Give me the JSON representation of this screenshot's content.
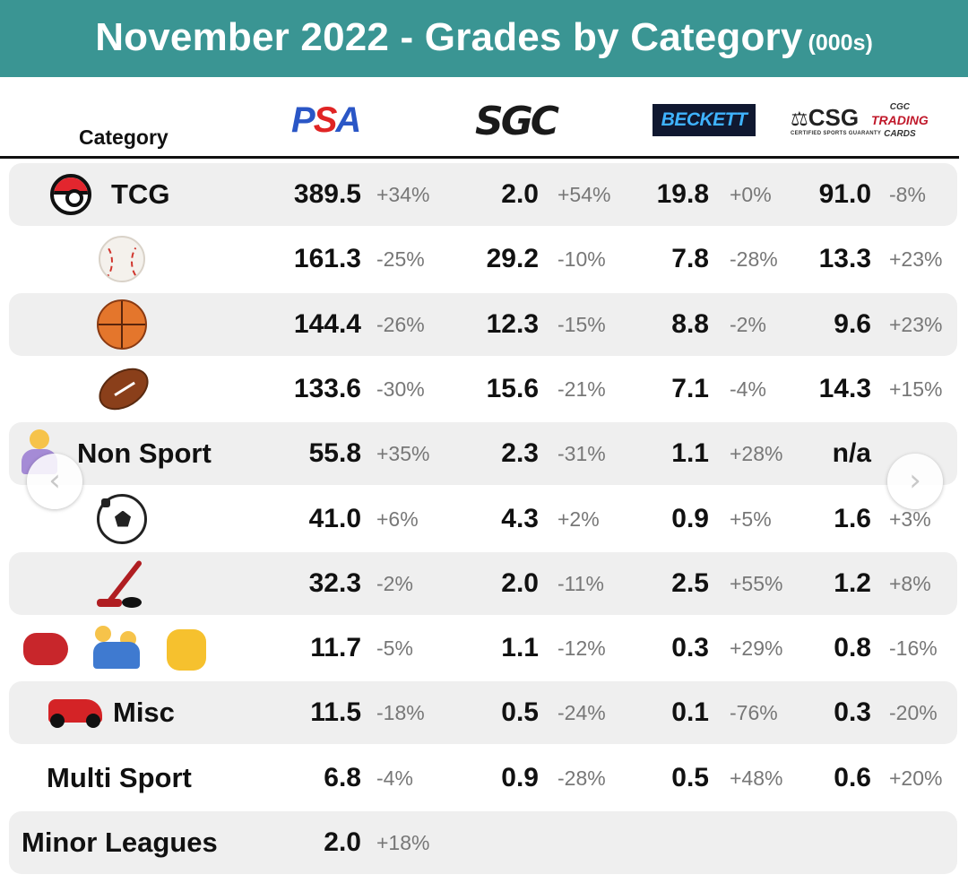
{
  "title": {
    "main": "November 2022 - Grades by Category",
    "unit": "(000s)"
  },
  "header": {
    "category": "Category",
    "graders": {
      "psa": {
        "p": "P",
        "s": "S",
        "a": "A"
      },
      "sgc": "SGC",
      "beckett": "BECKETT",
      "csg": "CSG",
      "csg_tagline": "CERTIFIED SPORTS GUARANTY",
      "cgc_small": "CGC",
      "cgc_main": "TRADING",
      "cgc_sub": "CARDS"
    }
  },
  "nav": {
    "prev": "‹",
    "next": "›"
  },
  "colors": {
    "title_bar": "#3a9593",
    "row_shade": "#efefef",
    "psa_blue": "#2a56c6",
    "psa_red": "#e02424",
    "beckett_bg": "#101830"
  },
  "chart_data": {
    "type": "table",
    "title": "November 2022 - Grades by Category",
    "unit": "(000s)",
    "columns": [
      "Category",
      "PSA",
      "SGC",
      "BECKETT",
      "CSG / CGC"
    ],
    "rows": [
      {
        "category": "TCG",
        "icon": "pokeball-icon",
        "shaded": true,
        "psa": {
          "value": "389.5",
          "change": "+34%"
        },
        "sgc": {
          "value": "2.0",
          "change": "+54%"
        },
        "beckett": {
          "value": "19.8",
          "change": "+0%"
        },
        "csg": {
          "value": "91.0",
          "change": "-8%"
        }
      },
      {
        "category": "",
        "icon": "baseball-icon",
        "shaded": false,
        "psa": {
          "value": "161.3",
          "change": "-25%"
        },
        "sgc": {
          "value": "29.2",
          "change": "-10%"
        },
        "beckett": {
          "value": "7.8",
          "change": "-28%"
        },
        "csg": {
          "value": "13.3",
          "change": "+23%"
        }
      },
      {
        "category": "",
        "icon": "basketball-icon",
        "shaded": true,
        "psa": {
          "value": "144.4",
          "change": "-26%"
        },
        "sgc": {
          "value": "12.3",
          "change": "-15%"
        },
        "beckett": {
          "value": "8.8",
          "change": "-2%"
        },
        "csg": {
          "value": "9.6",
          "change": "+23%"
        }
      },
      {
        "category": "",
        "icon": "football-icon",
        "shaded": false,
        "psa": {
          "value": "133.6",
          "change": "-30%"
        },
        "sgc": {
          "value": "15.6",
          "change": "-21%"
        },
        "beckett": {
          "value": "7.1",
          "change": "-4%"
        },
        "csg": {
          "value": "14.3",
          "change": "+15%"
        }
      },
      {
        "category": "Non Sport",
        "icon": "superhero-icon",
        "shaded": true,
        "psa": {
          "value": "55.8",
          "change": "+35%"
        },
        "sgc": {
          "value": "2.3",
          "change": "-31%"
        },
        "beckett": {
          "value": "1.1",
          "change": "+28%"
        },
        "csg": {
          "value": "n/a",
          "change": ""
        }
      },
      {
        "category": "",
        "icon": "soccer-ball-icon",
        "shaded": false,
        "psa": {
          "value": "41.0",
          "change": "+6%"
        },
        "sgc": {
          "value": "4.3",
          "change": "+2%"
        },
        "beckett": {
          "value": "0.9",
          "change": "+5%"
        },
        "csg": {
          "value": "1.6",
          "change": "+3%"
        }
      },
      {
        "category": "",
        "icon": "hockey-icon",
        "shaded": true,
        "psa": {
          "value": "32.3",
          "change": "-2%"
        },
        "sgc": {
          "value": "2.0",
          "change": "-11%"
        },
        "beckett": {
          "value": "2.5",
          "change": "+55%"
        },
        "csg": {
          "value": "1.2",
          "change": "+8%"
        }
      },
      {
        "category": "",
        "icon": "combat-sports-icons",
        "shaded": false,
        "psa": {
          "value": "11.7",
          "change": "-5%"
        },
        "sgc": {
          "value": "1.1",
          "change": "-12%"
        },
        "beckett": {
          "value": "0.3",
          "change": "+29%"
        },
        "csg": {
          "value": "0.8",
          "change": "-16%"
        }
      },
      {
        "category": "Misc",
        "icon": "racecar-icon",
        "shaded": true,
        "psa": {
          "value": "11.5",
          "change": "-18%"
        },
        "sgc": {
          "value": "0.5",
          "change": "-24%"
        },
        "beckett": {
          "value": "0.1",
          "change": "-76%"
        },
        "csg": {
          "value": "0.3",
          "change": "-20%"
        }
      },
      {
        "category": "Multi Sport",
        "icon": "",
        "shaded": false,
        "psa": {
          "value": "6.8",
          "change": "-4%"
        },
        "sgc": {
          "value": "0.9",
          "change": "-28%"
        },
        "beckett": {
          "value": "0.5",
          "change": "+48%"
        },
        "csg": {
          "value": "0.6",
          "change": "+20%"
        }
      },
      {
        "category": "Minor Leagues",
        "icon": "",
        "shaded": true,
        "psa": {
          "value": "2.0",
          "change": "+18%"
        },
        "sgc": {
          "value": "",
          "change": ""
        },
        "beckett": {
          "value": "",
          "change": ""
        },
        "csg": {
          "value": "",
          "change": ""
        }
      }
    ]
  }
}
